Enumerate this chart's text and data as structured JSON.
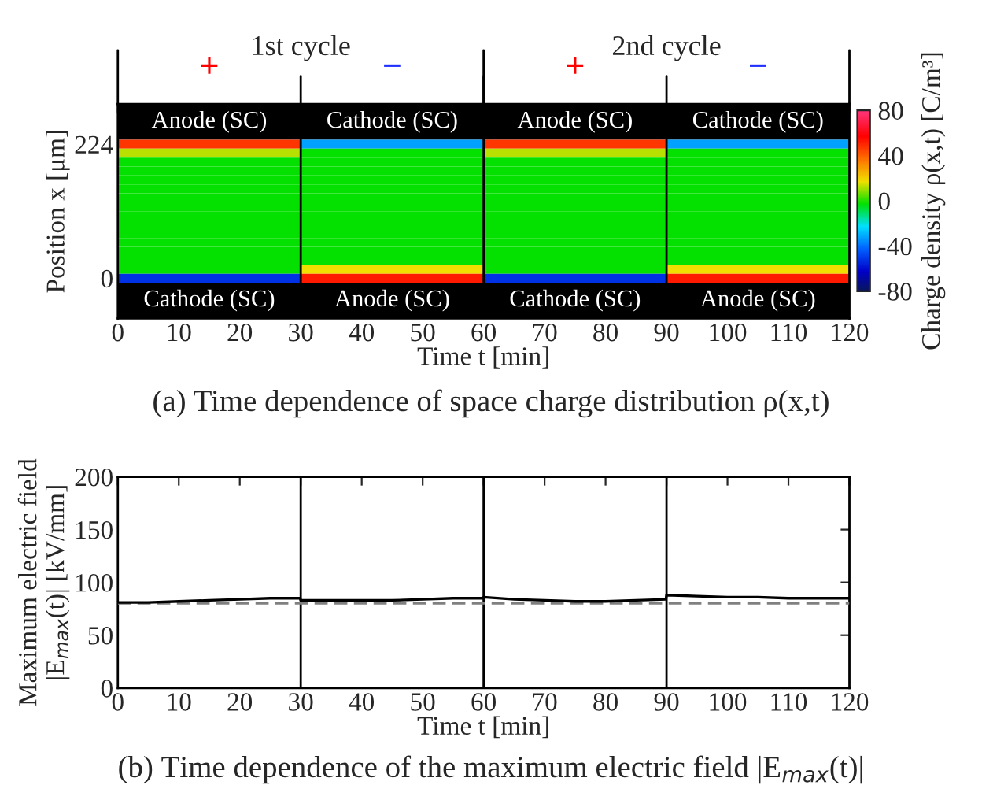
{
  "chart_data": [
    {
      "type": "heatmap",
      "title": "(a) Time dependence of space charge distribution ρ(x,t)",
      "xlabel": "Time t [min]",
      "ylabel": "Position x [μm]",
      "clabel": "Charge density ρ(x,t) [C/m³]",
      "x": [
        15,
        45,
        75,
        105
      ],
      "y_categories": [
        "224",
        null,
        null,
        null,
        null,
        null,
        null,
        null,
        null,
        null,
        null,
        null,
        null,
        null,
        null,
        "0"
      ],
      "cells": [
        [
          50,
          -30,
          50,
          -30
        ],
        [
          15,
          0,
          15,
          0
        ],
        [
          0,
          0,
          0,
          0
        ],
        [
          0,
          0,
          0,
          0
        ],
        [
          0,
          0,
          0,
          0
        ],
        [
          0,
          0,
          0,
          0
        ],
        [
          0,
          0,
          0,
          0
        ],
        [
          0,
          0,
          0,
          0
        ],
        [
          0,
          0,
          0,
          0
        ],
        [
          0,
          0,
          0,
          0
        ],
        [
          0,
          0,
          0,
          0
        ],
        [
          0,
          0,
          0,
          0
        ],
        [
          0,
          0,
          0,
          0
        ],
        [
          0,
          0,
          0,
          0
        ],
        [
          0,
          20,
          0,
          20
        ],
        [
          -50,
          55,
          -50,
          55
        ]
      ],
      "clim": [
        -80,
        80
      ],
      "cticks": [
        -80,
        -40,
        0,
        40,
        80
      ],
      "xlim": [
        0,
        120
      ],
      "xticks": [
        0,
        10,
        20,
        30,
        40,
        50,
        60,
        70,
        80,
        90,
        100,
        110,
        120
      ],
      "ref_lines": [
        {
          "axis": "x",
          "value": 30,
          "color": "#000000"
        },
        {
          "axis": "x",
          "value": 60,
          "color": "#000000"
        },
        {
          "axis": "x",
          "value": 90,
          "color": "#000000"
        }
      ],
      "annotations": [
        "1st cycle",
        "2nd cycle",
        "+",
        "−",
        "+",
        "−",
        "Anode (SC)",
        "Cathode (SC)",
        "Anode (SC)",
        "Cathode (SC)",
        "Cathode (SC)",
        "Anode (SC)",
        "Cathode (SC)",
        "Anode (SC)"
      ]
    },
    {
      "type": "line",
      "title": "(b) Time dependence of the maximum electric field |E$_{max}$(t)|",
      "xlabel": "Time t [min]",
      "ylabel": "Maximum electric field\n|E$_{max}$(t)| [kV/mm]",
      "x": [
        0,
        5,
        10,
        15,
        20,
        25,
        29.9,
        30,
        35,
        40,
        45,
        50,
        55,
        59.9,
        60,
        65,
        70,
        75,
        80,
        85,
        89.9,
        90,
        95,
        100,
        105,
        110,
        115,
        120
      ],
      "series": [
        {
          "color": "#000000",
          "values": [
            81,
            81,
            82,
            83,
            84,
            85,
            85,
            83,
            83,
            83,
            83,
            84,
            85,
            85,
            86,
            84,
            83,
            82,
            82,
            83,
            84,
            88,
            87,
            86,
            86,
            85,
            85,
            85
          ]
        }
      ],
      "xlim": [
        0,
        120
      ],
      "xticks": [
        0,
        10,
        20,
        30,
        40,
        50,
        60,
        70,
        80,
        90,
        100,
        110,
        120
      ],
      "ylim": [
        0,
        200
      ],
      "yticks": [
        0,
        50,
        100,
        150,
        200
      ],
      "ref_lines": [
        {
          "axis": "x",
          "value": 30,
          "color": "#000000"
        },
        {
          "axis": "x",
          "value": 60,
          "color": "#000000"
        },
        {
          "axis": "x",
          "value": 90,
          "color": "#000000"
        },
        {
          "axis": "y",
          "value": 80,
          "color": "#808080",
          "line_style": "dashed"
        }
      ],
      "line_style": "solid",
      "marker": "none",
      "grid": false,
      "legend": false
    }
  ]
}
